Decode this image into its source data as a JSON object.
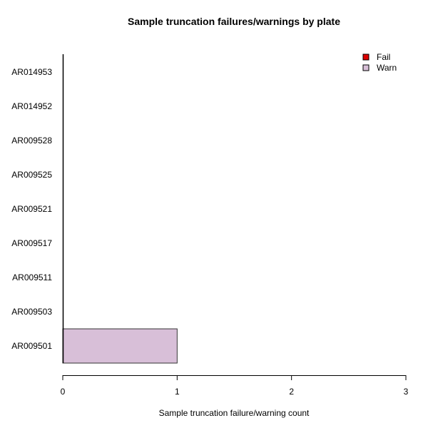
{
  "chart_data": {
    "type": "bar",
    "orientation": "horizontal",
    "stacked": true,
    "title": "Sample truncation failures/warnings by plate",
    "xlabel": "Sample truncation failure/warning count",
    "ylabel": "",
    "xlim": [
      0,
      3
    ],
    "xticks": [
      0,
      1,
      2,
      3
    ],
    "grid": false,
    "legend_position": "top-right",
    "categories": [
      "AR009501",
      "AR009503",
      "AR009511",
      "AR009517",
      "AR009521",
      "AR009525",
      "AR009528",
      "AR014952",
      "AR014953"
    ],
    "series": [
      {
        "name": "Fail",
        "color": "#dd0000",
        "values": [
          0,
          0,
          0,
          0,
          0,
          0,
          0,
          0,
          0
        ]
      },
      {
        "name": "Warn",
        "color": "#d8bfd8",
        "values": [
          1,
          0,
          0,
          0,
          0,
          0,
          0,
          0,
          0
        ]
      }
    ]
  }
}
